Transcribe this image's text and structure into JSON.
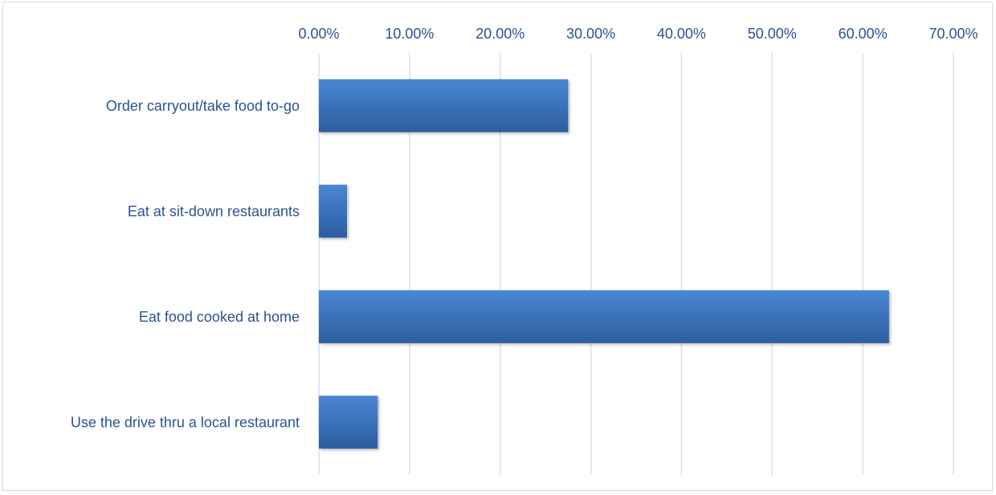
{
  "chart_data": {
    "type": "bar",
    "orientation": "horizontal",
    "categories": [
      "Order carryout/take food to-go",
      "Eat at sit-down restaurants",
      "Eat food cooked at home",
      "Use the drive thru a local restaurant"
    ],
    "values": [
      27.5,
      3.1,
      62.9,
      6.5
    ],
    "value_format": "percent",
    "xlim": [
      0,
      70
    ],
    "x_ticks": [
      0,
      10,
      20,
      30,
      40,
      50,
      60,
      70
    ],
    "x_tick_labels": [
      "0.00%",
      "10.00%",
      "20.00%",
      "30.00%",
      "40.00%",
      "50.00%",
      "60.00%",
      "70.00%"
    ],
    "x_axis_position": "top",
    "grid": true,
    "legend": "none",
    "title": "",
    "xlabel": "",
    "ylabel": "",
    "colors": {
      "bar_top": "#4a86d4",
      "bar_bottom": "#2c5e9e",
      "text": "#2a5291",
      "grid": "#d6dfec"
    }
  }
}
